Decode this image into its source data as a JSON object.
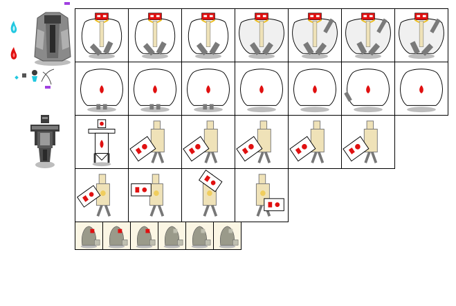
{
  "palette": {
    "grid_line": "#000000",
    "cloth": "#ffffff",
    "shadow": "#bdbdbd",
    "armor": "#7a7a7a",
    "armor_dark": "#3c3c3c",
    "tan": "#efe2b8",
    "red": "#e01010",
    "cyan": "#22c8e0",
    "gold": "#f0c020",
    "purple": "#a040e0",
    "small_bg": "#fbf6e4"
  },
  "left_panel": {
    "icons": [
      "purple-marker-icon",
      "cyan-flame-icon",
      "red-flame-icon",
      "grey-cloak-sprite",
      "item-pickups-icons",
      "purple-marker-icon",
      "armored-knight-sprite"
    ]
  },
  "sheet": {
    "rows": [
      {
        "name": "robed-figure-row",
        "frames": 7,
        "kind": "robed"
      },
      {
        "name": "cloak-blob-row",
        "frames": 7,
        "kind": "cloak"
      },
      {
        "name": "shield-bearer-row",
        "frames": 6,
        "kind": "shield"
      },
      {
        "name": "shield-swing-row",
        "frames": 4,
        "kind": "swing"
      },
      {
        "name": "hooded-mini-row",
        "frames": 6,
        "kind": "hood"
      }
    ]
  }
}
